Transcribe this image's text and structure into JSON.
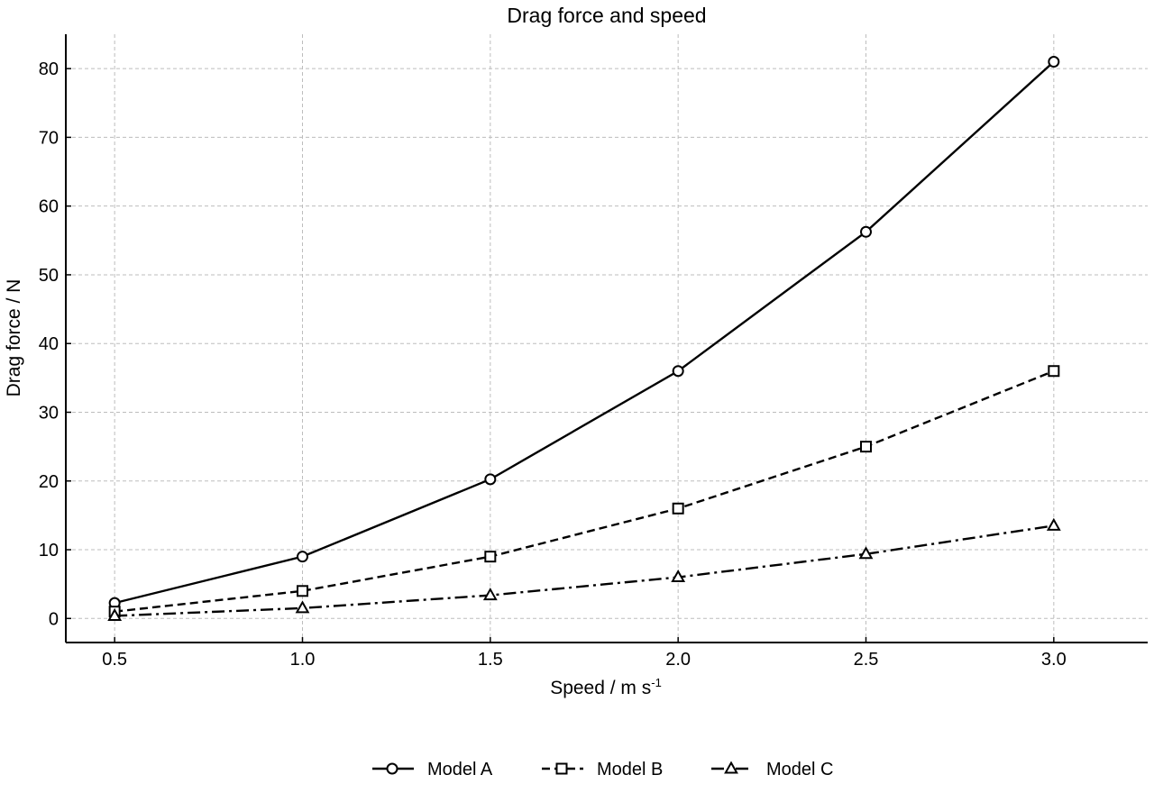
{
  "chart_data": {
    "type": "line",
    "title": "Drag force and speed",
    "xlabel": "Speed / m s",
    "xlabel_superscript": "-1",
    "ylabel": "Drag force / N",
    "x": [
      0.5,
      1.0,
      1.5,
      2.0,
      2.5,
      3.0
    ],
    "xlim": [
      0.37,
      3.25
    ],
    "ylim": [
      -3.5,
      85
    ],
    "xticks": [
      0.5,
      1.0,
      1.5,
      2.0,
      2.5,
      3.0
    ],
    "xtick_labels": [
      "0.5",
      "1.0",
      "1.5",
      "2.0",
      "2.5",
      "3.0"
    ],
    "yticks": [
      0,
      10,
      20,
      30,
      40,
      50,
      60,
      70,
      80
    ],
    "ytick_labels": [
      "0",
      "10",
      "20",
      "30",
      "40",
      "50",
      "60",
      "70",
      "80"
    ],
    "grid": true,
    "legend_position": "bottom-center",
    "series": [
      {
        "name": "Model A",
        "marker": "circle",
        "line_style": "solid",
        "color": "#000000",
        "values": [
          2.25,
          9.0,
          20.25,
          36.0,
          56.25,
          81.0
        ]
      },
      {
        "name": "Model B",
        "marker": "square",
        "line_style": "dashed",
        "color": "#000000",
        "values": [
          1.0,
          4.0,
          9.0,
          16.0,
          25.0,
          36.0
        ]
      },
      {
        "name": "Model C",
        "marker": "triangle",
        "line_style": "dash-dot",
        "color": "#000000",
        "values": [
          0.375,
          1.5,
          3.375,
          6.0,
          9.375,
          13.5
        ]
      }
    ]
  }
}
